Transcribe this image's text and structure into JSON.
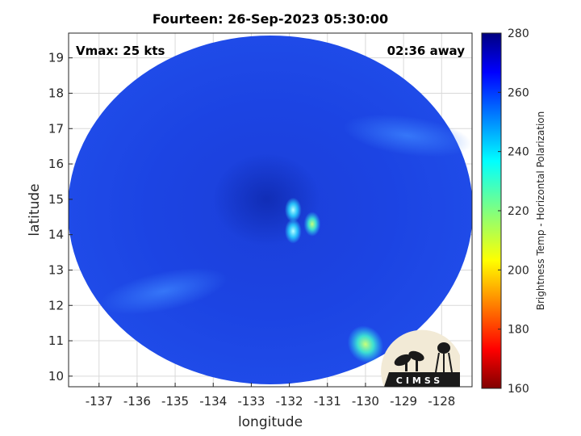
{
  "chart_data": {
    "type": "heatmap",
    "title": "Fourteen: 26-Sep-2023 05:30:00",
    "xlabel": "longitude",
    "ylabel": "latitude",
    "x_ticks": [
      "-137",
      "-136",
      "-135",
      "-134",
      "-133",
      "-132",
      "-131",
      "-130",
      "-129",
      "-128"
    ],
    "y_ticks": [
      "10",
      "11",
      "12",
      "13",
      "14",
      "15",
      "16",
      "17",
      "18",
      "19"
    ],
    "xlim": [
      -137.8,
      -127.2
    ],
    "ylim": [
      9.7,
      19.7
    ],
    "grid": true,
    "annotations": {
      "vmax": "Vmax: 25 kts",
      "time_away": "02:36 away"
    },
    "colorbar": {
      "label": "Brightness Temp - Horizontal Polarization",
      "ticks": [
        "280",
        "260",
        "240",
        "220",
        "200",
        "180",
        "160"
      ],
      "range": [
        160,
        280
      ],
      "colormap": "jet"
    },
    "swath_center": {
      "lon": -132.5,
      "lat": 14.6
    },
    "background_value": 262,
    "features": [
      {
        "kind": "warm-core",
        "lon": -132.6,
        "lat": 15.0,
        "value": 268
      },
      {
        "kind": "cold-spot",
        "lon": -131.9,
        "lat": 14.7,
        "value": 244
      },
      {
        "kind": "cold-spot",
        "lon": -131.4,
        "lat": 14.3,
        "value": 236
      },
      {
        "kind": "cold-spot",
        "lon": -131.9,
        "lat": 14.1,
        "value": 246
      },
      {
        "kind": "cold-spot",
        "lon": -130.0,
        "lat": 10.9,
        "value": 228
      },
      {
        "kind": "cool-band",
        "lon": -128.9,
        "lat": 16.8,
        "value": 248
      },
      {
        "kind": "cool-band",
        "lon": -135.3,
        "lat": 12.4,
        "value": 252
      }
    ],
    "logo": "CIMSS"
  }
}
